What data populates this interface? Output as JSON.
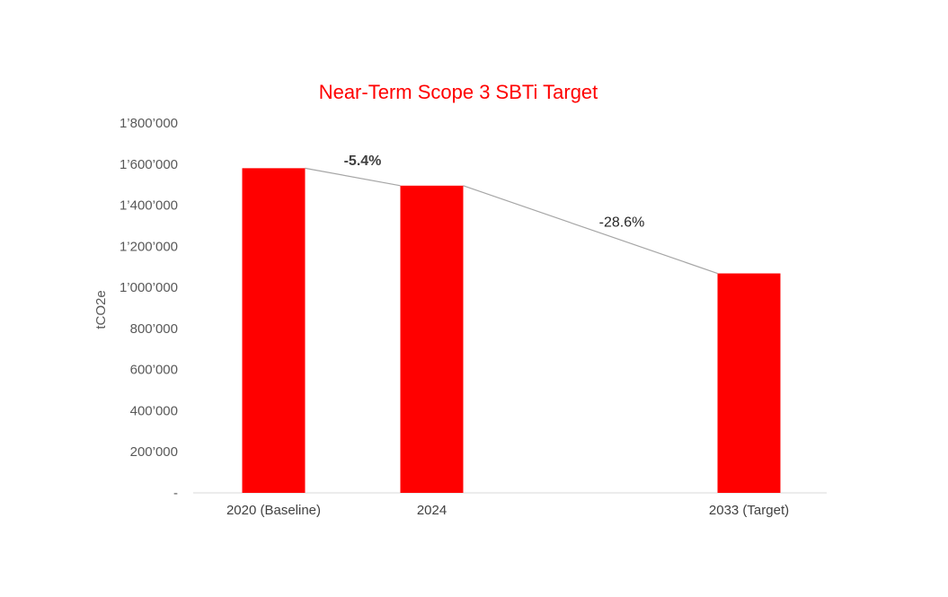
{
  "chart_data": {
    "type": "bar",
    "title": "Near-Term Scope 3 SBTi Target",
    "xlabel": "",
    "ylabel": "tCO2e",
    "categories": [
      "2020 (Baseline)",
      "2024",
      "2033 (Target)"
    ],
    "values": [
      1580000,
      1495000,
      1068000
    ],
    "ylim": [
      0,
      1800000
    ],
    "yticks": [
      {
        "value": 0,
        "label": "-"
      },
      {
        "value": 200000,
        "label": "200’000"
      },
      {
        "value": 400000,
        "label": "400’000"
      },
      {
        "value": 600000,
        "label": "600’000"
      },
      {
        "value": 800000,
        "label": "800’000"
      },
      {
        "value": 1000000,
        "label": "1’000’000"
      },
      {
        "value": 1200000,
        "label": "1’200’000"
      },
      {
        "value": 1400000,
        "label": "1’400’000"
      },
      {
        "value": 1600000,
        "label": "1’600’000"
      },
      {
        "value": 1800000,
        "label": "1’800’000"
      }
    ],
    "annotations": [
      {
        "text": "-5.4%",
        "from": "2020 (Baseline)",
        "to": "2024",
        "bold": true
      },
      {
        "text": "-28.6%",
        "from": "2024",
        "to": "2033 (Target)",
        "bold": false
      }
    ],
    "grid": false,
    "legend": "none",
    "colors": {
      "bar": "#ff0000",
      "title": "#ff0000",
      "connector": "#a6a6a6",
      "axis": "#d9d9d9"
    }
  }
}
